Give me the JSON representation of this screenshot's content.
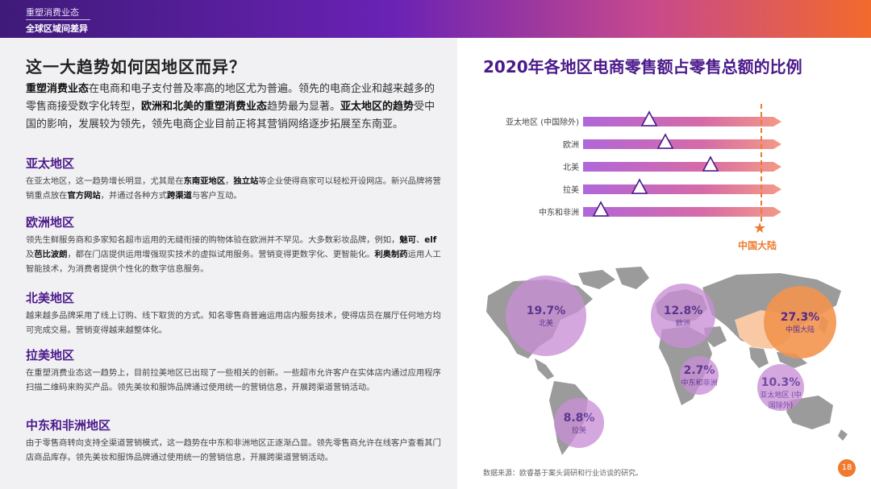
{
  "header": {
    "section": "重塑消费业态",
    "subtitle": "全球区域间差异"
  },
  "left": {
    "title": "这一大趋势如何因地区而异？",
    "intro": [
      {
        "text": "重塑消费业态",
        "bold": true
      },
      {
        "text": "在电商和电子支付普及率高的地区尤为普遍。领先的电商企业和越来越多的零售商接受数字化转型，",
        "bold": false
      },
      {
        "text": "欧洲和北美的重塑消费业态",
        "bold": true
      },
      {
        "text": "趋势最为显著。",
        "bold": false
      },
      {
        "text": "亚太地区的趋势",
        "bold": true
      },
      {
        "text": "受中国的影响，发展较为领先，领先电商企业目前正将其营销网络逐步拓展至东南亚。",
        "bold": false
      }
    ],
    "regions": [
      {
        "heading": "亚太地区",
        "body": [
          {
            "text": "在亚太地区，这一趋势增长明显，尤其是在",
            "bold": false
          },
          {
            "text": "东南亚地区",
            "bold": true
          },
          {
            "text": "，",
            "bold": false
          },
          {
            "text": "独立站",
            "bold": true
          },
          {
            "text": "等企业使得商家可以轻松开设网店。新兴品牌将营销重点放在",
            "bold": false
          },
          {
            "text": "官方网站",
            "bold": true
          },
          {
            "text": "，并通过各种方式",
            "bold": false
          },
          {
            "text": "跨渠道",
            "bold": true
          },
          {
            "text": "与客户互动。",
            "bold": false
          }
        ]
      },
      {
        "heading": "欧洲地区",
        "body": [
          {
            "text": "领先生鲜服务商和多家知名超市运用的无缝衔接的购物体验在欧洲并不罕见。大多数彩妆品牌，例如，",
            "bold": false
          },
          {
            "text": "魅可",
            "bold": true
          },
          {
            "text": "、",
            "bold": false
          },
          {
            "text": "elf",
            "bold": true
          },
          {
            "text": "及",
            "bold": false
          },
          {
            "text": "芭比波朗",
            "bold": true
          },
          {
            "text": "，都在门店提供运用增强现实技术的虚拟试用服务。营销变得更数字化、更智能化。",
            "bold": false
          },
          {
            "text": "利奥制药",
            "bold": true
          },
          {
            "text": "运用人工智能技术，为消费者提供个性化的数字信息服务。",
            "bold": false
          }
        ]
      },
      {
        "heading": "北美地区",
        "body": [
          {
            "text": "越来越多品牌采用了线上订购、线下取货的方式。知名零售商普遍运用店内服务技术，使得店员在展厅任何地方均可完成交易。营销变得越来越整体化。",
            "bold": false
          }
        ]
      },
      {
        "heading": "拉美地区",
        "body": [
          {
            "text": "在重塑消费业态这一趋势上，目前拉美地区已出现了一些相关的创新。一些超市允许客户在实体店内通过应用程序扫描二维码来购买产品。领先美妆和服饰品牌通过使用统一的营销信息，开展跨渠道营销活动。",
            "bold": false
          }
        ]
      },
      {
        "heading": "中东和非洲地区",
        "body": [
          {
            "text": "由于零售商转向支持全渠道营销模式，这一趋势在中东和非洲地区正逐渐凸显。领先零售商允许在线客户查看其门店商品库存。领先美妆和服饰品牌通过使用统一的营销信息，开展跨渠道营销活动。",
            "bold": false
          }
        ]
      }
    ]
  },
  "right": {
    "title": "2020年各地区电商零售额占零售总额的比例",
    "china_label": "中国大陆",
    "source": "数据来源：欧睿基于案头调研和行业访谈的研究。",
    "page_number": "18"
  },
  "chart_data": {
    "type": "bar",
    "categories": [
      "亚太地区 (中国除外)",
      "欧洲",
      "北美",
      "拉美",
      "中东和非洲"
    ],
    "values": [
      10.3,
      12.8,
      19.7,
      8.8,
      2.7
    ],
    "reference": {
      "label": "中国大陆",
      "value": 27.3
    },
    "xlim": [
      0,
      30
    ],
    "map_bubbles": [
      {
        "pct": "19.7%",
        "name": "北美",
        "value": 19.7,
        "color": "#c98fd6"
      },
      {
        "pct": "12.8%",
        "name": "欧洲",
        "value": 12.8,
        "color": "#c98fd6"
      },
      {
        "pct": "27.3%",
        "name": "中国大陆",
        "value": 27.3,
        "color": "#f3944e"
      },
      {
        "pct": "2.7%",
        "name": "中东和非洲",
        "value": 2.7,
        "color": "#c98fd6"
      },
      {
        "pct": "10.3%",
        "name": "亚太地区 (中国除外)",
        "value": 10.3,
        "color": "#c98fd6"
      },
      {
        "pct": "8.8%",
        "name": "拉美",
        "value": 8.8,
        "color": "#c98fd6"
      }
    ]
  },
  "colors": {
    "purple": "#4b1a8a",
    "orange": "#ee7a32",
    "map_land": "#9b9b9b"
  }
}
